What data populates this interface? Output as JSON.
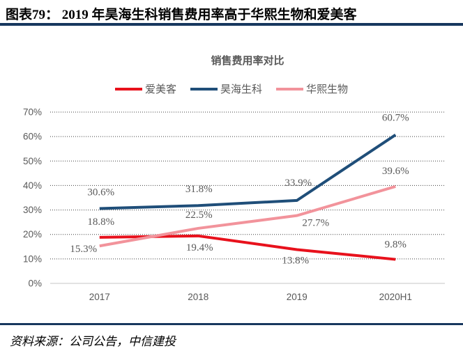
{
  "header": {
    "title": "图表79： 2019 年昊海生科销售费用率高于华熙生物和爱美客"
  },
  "colors": {
    "accent_navy": "#17375e",
    "red": "#e8111c",
    "dark_blue": "#1f4e79",
    "pink": "#f2939b",
    "text_gray": "#595959",
    "axis_gray": "#d9d9d9"
  },
  "chart_data": {
    "type": "line",
    "title": "销售费用率对比",
    "categories": [
      "2017",
      "2018",
      "2019",
      "2020H1"
    ],
    "y_ticks": [
      "0%",
      "10%",
      "20%",
      "30%",
      "40%",
      "50%",
      "60%",
      "70%"
    ],
    "ylim": [
      0,
      70
    ],
    "grid": "horizontal-dotted",
    "legend_position": "top",
    "series": [
      {
        "name": "爱美客",
        "color": "#e8111c",
        "values": [
          18.8,
          19.4,
          13.8,
          9.8
        ],
        "labels": [
          "18.8%",
          "19.4%",
          "13.8%",
          "9.8%"
        ],
        "label_offsets": [
          [
            2,
            -23
          ],
          [
            2,
            16
          ],
          [
            -2,
            15
          ],
          [
            0,
            -22
          ]
        ]
      },
      {
        "name": "昊海生科",
        "color": "#1f4e79",
        "values": [
          30.6,
          31.8,
          33.9,
          60.7
        ],
        "labels": [
          "30.6%",
          "31.8%",
          "33.9%",
          "60.7%"
        ],
        "label_offsets": [
          [
            2,
            -24
          ],
          [
            1,
            -24
          ],
          [
            2,
            -26
          ],
          [
            0,
            -25
          ]
        ]
      },
      {
        "name": "华熙生物",
        "color": "#f2939b",
        "values": [
          15.3,
          22.5,
          27.7,
          39.6
        ],
        "labels": [
          "15.3%",
          "22.5%",
          "27.7%",
          "39.6%"
        ],
        "label_offsets": [
          [
            -23,
            4
          ],
          [
            1,
            -20
          ],
          [
            27,
            10
          ],
          [
            0,
            -23
          ]
        ]
      }
    ]
  },
  "footer": {
    "source": "资料来源：公司公告，中信建投"
  }
}
